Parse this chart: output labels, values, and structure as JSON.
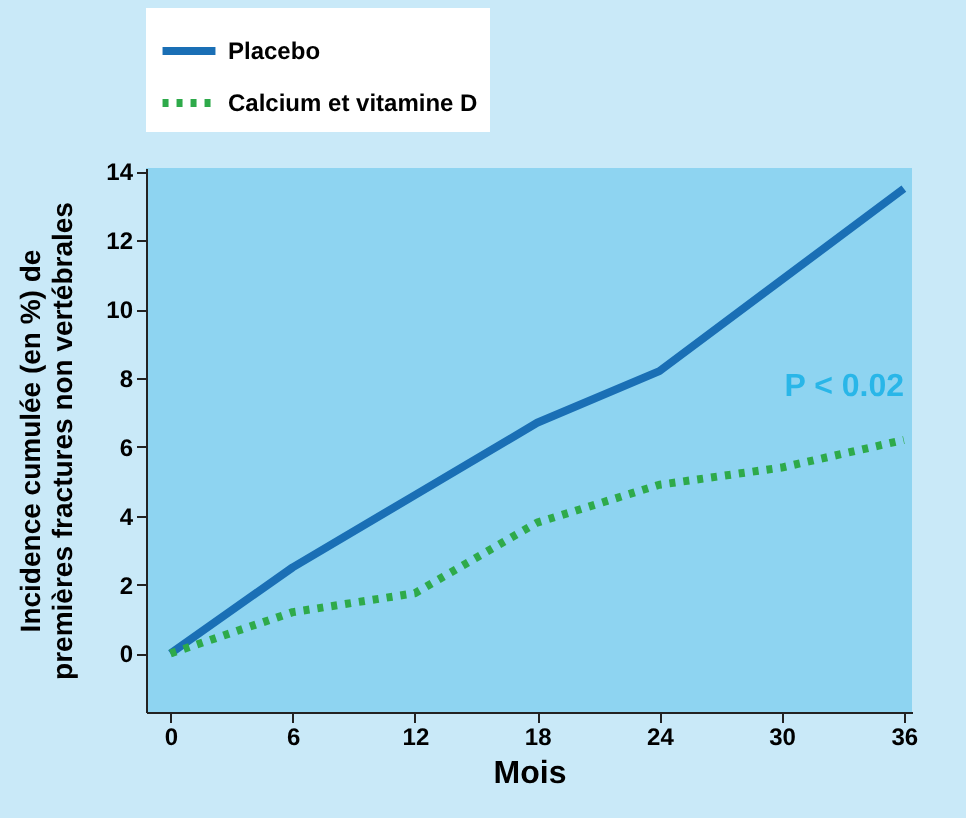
{
  "chart_data": {
    "type": "line",
    "xlabel": "Mois",
    "ylabel": "Incidence cumulée (en %) de\npremières fractures non vertébrales",
    "series": [
      {
        "name": "Placebo",
        "color": "#1a6fb5",
        "line_style": "solid",
        "x": [
          0,
          6,
          12,
          18,
          24,
          36
        ],
        "values": [
          0,
          2.5,
          4.6,
          6.7,
          8.2,
          13.5
        ]
      },
      {
        "name": "Calcium et vitamine D",
        "color": "#2eaa4a",
        "line_style": "dotted",
        "x": [
          0,
          6,
          12,
          18,
          24,
          30,
          36
        ],
        "values": [
          0,
          1.2,
          1.75,
          3.8,
          4.9,
          5.4,
          6.2
        ]
      }
    ],
    "xlim": [
      -1.2,
      36.4
    ],
    "xticks": [
      0,
      6,
      12,
      18,
      24,
      30,
      36
    ],
    "ylim": [
      -1.7,
      14.1
    ],
    "yticks": [
      0,
      2,
      4,
      6,
      8,
      10,
      12,
      14
    ],
    "annotations": [
      "P < 0.02"
    ],
    "legend": "top",
    "grid": false,
    "marker": "none"
  }
}
